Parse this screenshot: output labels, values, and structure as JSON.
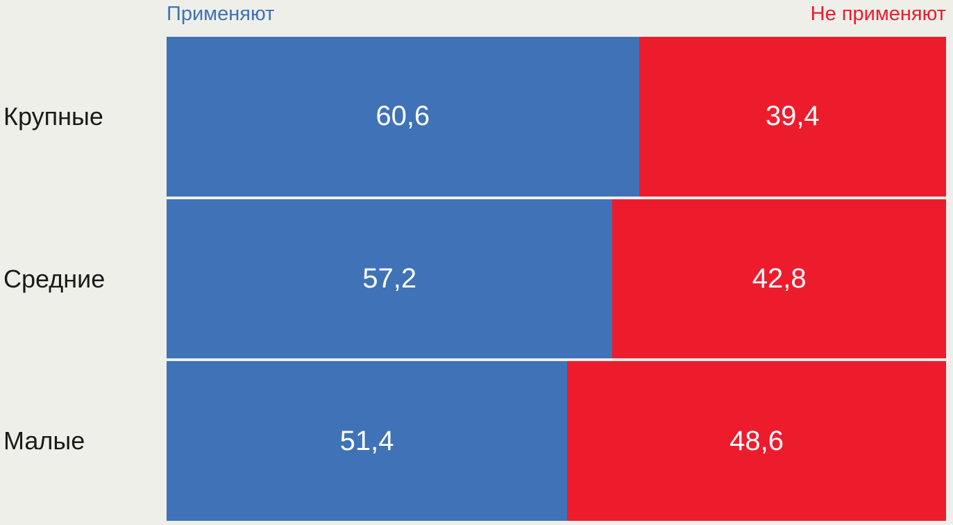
{
  "background": "#EFEFEA",
  "chart_data": {
    "type": "bar",
    "orientation": "horizontal",
    "stacked": true,
    "stacked_total": 100,
    "xlim": [
      0,
      100
    ],
    "grid": false,
    "legend_position": "top",
    "categories": [
      "Крупные",
      "Средние",
      "Малые"
    ],
    "series": [
      {
        "name": "Применяют",
        "color": "#3F72B7",
        "values": [
          60.6,
          57.2,
          51.4
        ],
        "labels": [
          "60,6",
          "57,2",
          "51,4"
        ]
      },
      {
        "name": "Не применяют",
        "color": "#ED1C2D",
        "values": [
          39.4,
          42.8,
          48.6
        ],
        "labels": [
          "39,4",
          "42,8",
          "48,6"
        ]
      }
    ],
    "value_label_color": "#FFFFFF",
    "category_label_color": "#1A1A1A"
  }
}
